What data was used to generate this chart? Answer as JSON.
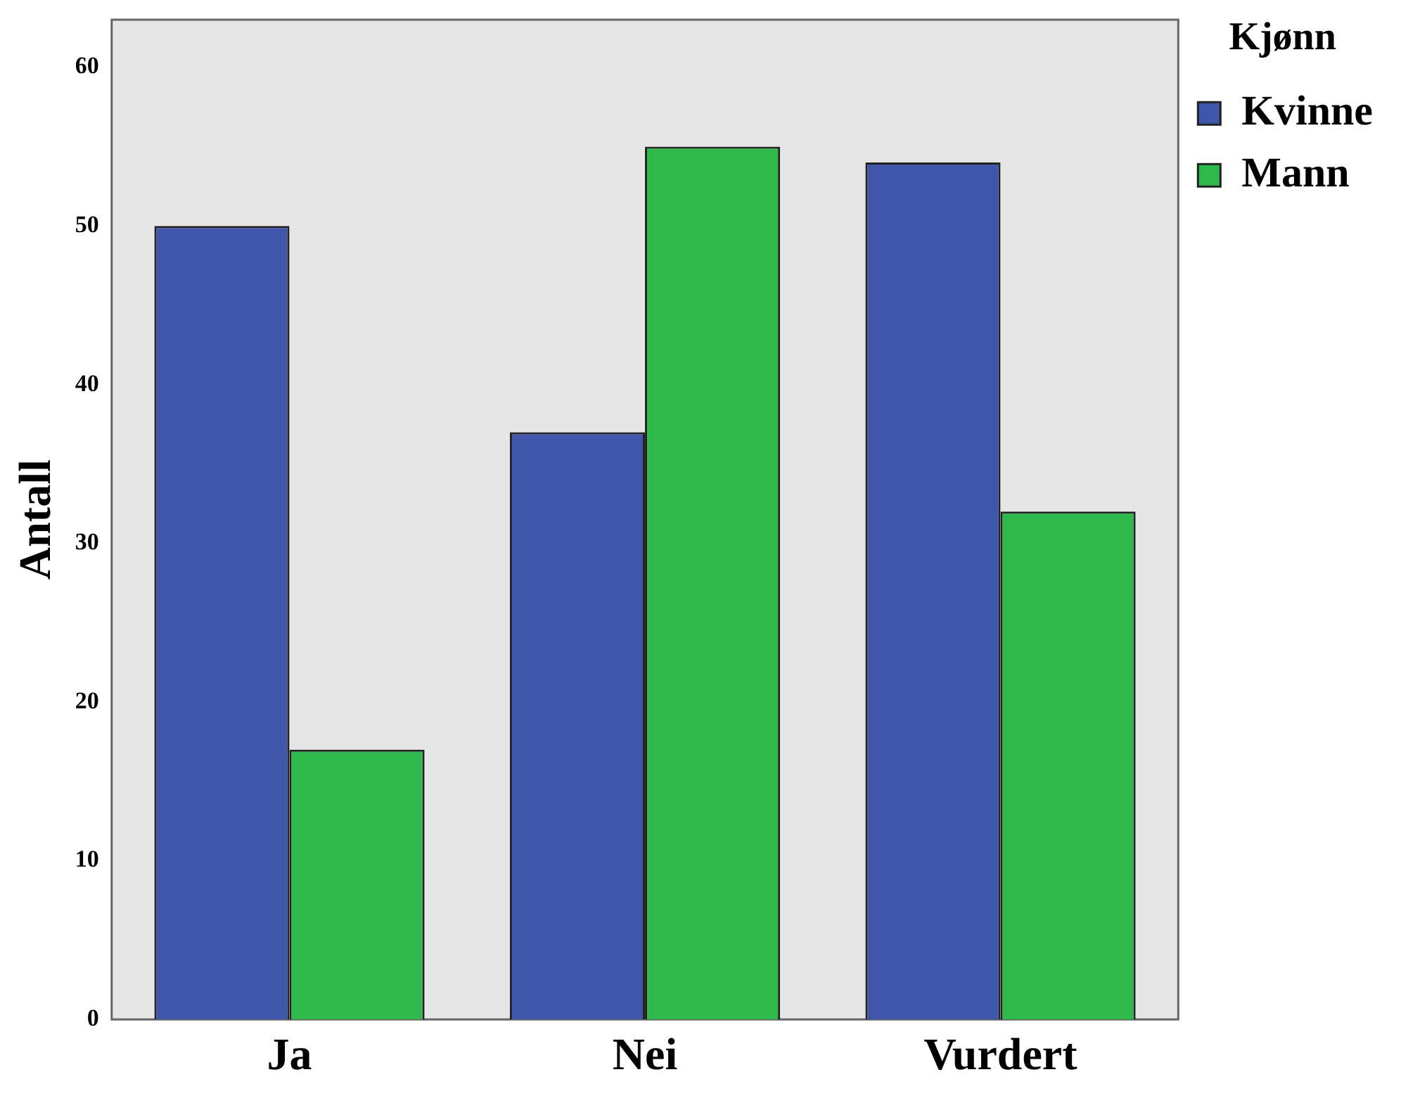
{
  "chart_data": {
    "type": "bar",
    "ylabel": "Antall",
    "legend_title": "Kjønn",
    "legend": "top right",
    "grid": false,
    "categories": [
      "Ja",
      "Nei",
      "Vurdert"
    ],
    "series": [
      {
        "name": "Kvinne",
        "color": "#3f56aa",
        "values": [
          50,
          37,
          54
        ]
      },
      {
        "name": "Mann",
        "color": "#2fb84b",
        "values": [
          17,
          55,
          32
        ]
      }
    ],
    "ylim": [
      0,
      63
    ],
    "yticks": [
      0,
      10,
      20,
      30,
      40,
      50,
      60
    ]
  }
}
